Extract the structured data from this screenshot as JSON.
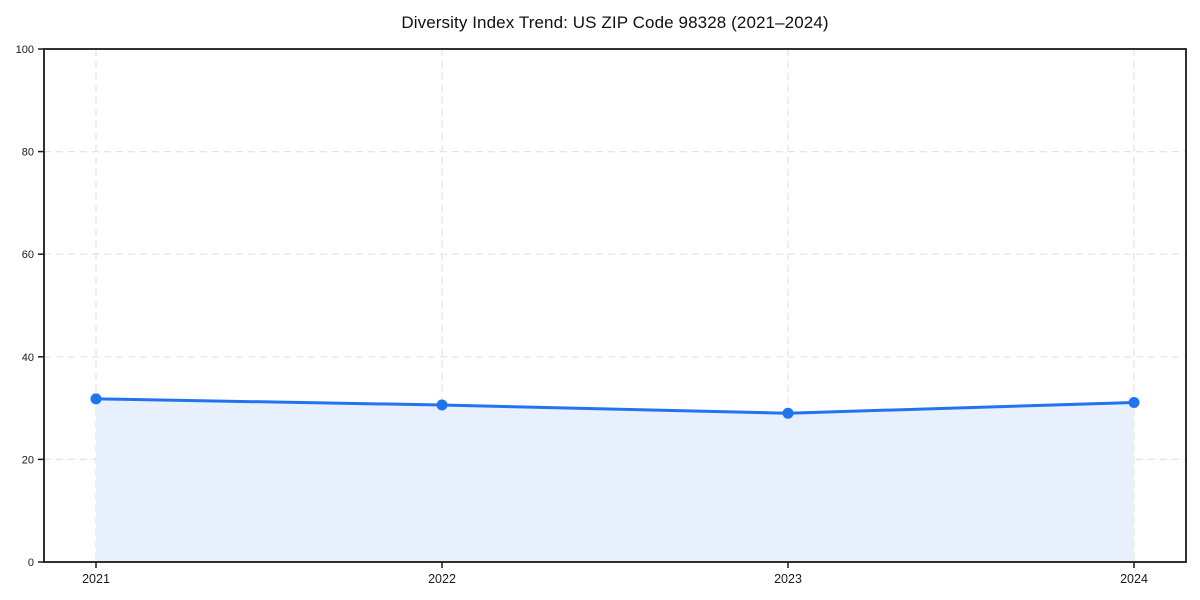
{
  "page": {
    "title": "Diversity Index Trend: US ZIP Code 98328 (2021–2024)"
  },
  "chart_data": {
    "type": "area",
    "title": "Diversity Index Trend: US ZIP Code 98328 (2021–2024)",
    "categories": [
      "2021",
      "2022",
      "2023",
      "2024"
    ],
    "series": [
      {
        "name": "Diversity Index",
        "values": [
          31.8,
          30.6,
          29.0,
          31.1
        ]
      }
    ],
    "xlabel": "",
    "ylabel": "",
    "ylim": [
      0,
      100
    ],
    "yticks": [
      0,
      20,
      40,
      60,
      80,
      100
    ],
    "grid": true,
    "grid_style": "dashed",
    "legend": "none",
    "marker": "circle",
    "colors": {
      "line": "#2273f0",
      "marker": "#2273f0",
      "area_fill": "#e8f0fd",
      "grid": "#e3e3e3",
      "axis": "#1a1a1a",
      "tick_text": "#1a1a1a",
      "background": "#ffffff"
    }
  }
}
